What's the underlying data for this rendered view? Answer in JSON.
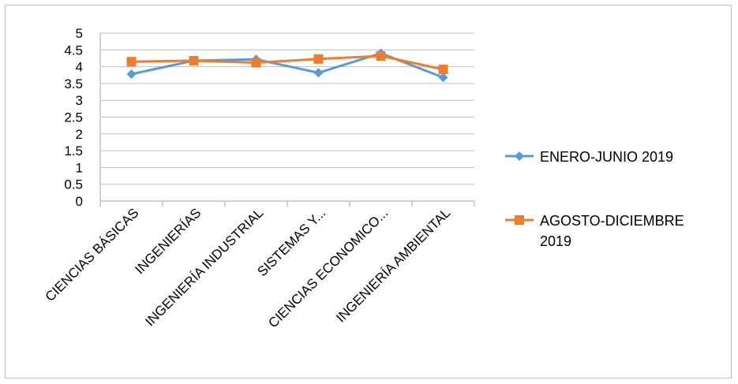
{
  "chart_data": {
    "type": "line",
    "title": "",
    "xlabel": "",
    "ylabel": "",
    "categories": [
      "CIENCIAS BÁSICAS",
      "INGENIERÍAS",
      "INGENIERÍA INDUSTRIAL",
      "SISTEMAS Y...",
      "CIENCIAS ECONOMICO...",
      "INGENIERÍA AMBIENTAL"
    ],
    "ylim": [
      0,
      5
    ],
    "yticks": [
      "0",
      "0.5",
      "1",
      "1.5",
      "2",
      "2.5",
      "3",
      "3.5",
      "4",
      "4.5",
      "5"
    ],
    "grid": true,
    "legend_position": "right",
    "series": [
      {
        "name": "ENERO-JUNIO 2019",
        "values": [
          3.78,
          4.18,
          4.22,
          3.82,
          4.4,
          3.68
        ],
        "color": "#5B9BD5",
        "marker": "diamond"
      },
      {
        "name": "AGOSTO-DICIEMBRE 2019",
        "name_lines": [
          "AGOSTO-DICIEMBRE",
          "2019"
        ],
        "values": [
          4.15,
          4.18,
          4.12,
          4.23,
          4.32,
          3.92
        ],
        "color": "#ED7D31",
        "marker": "square"
      }
    ]
  }
}
